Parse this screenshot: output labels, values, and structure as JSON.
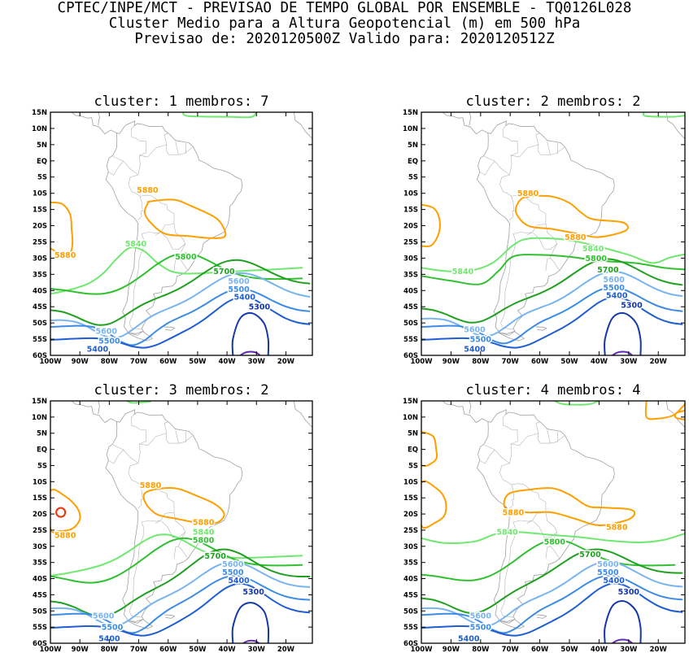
{
  "header": {
    "line1": "CPTEC/INPE/MCT - PREVISAO DE TEMPO GLOBAL POR ENSEMBLE - TQ0126L028",
    "line2": "Cluster Medio para a Altura Geopotencial (m) em 500 hPa",
    "line3": "Previsao de: 2020120500Z   Valido para: 2020120512Z"
  },
  "axes": {
    "lat_labels": [
      "15N",
      "10N",
      "5N",
      "EQ",
      "5S",
      "10S",
      "15S",
      "20S",
      "25S",
      "30S",
      "35S",
      "40S",
      "45S",
      "50S",
      "55S",
      "60S"
    ],
    "lon_labels": [
      "100W",
      "90W",
      "80W",
      "70W",
      "60W",
      "50W",
      "40W",
      "30W",
      "20W"
    ]
  },
  "colors": {
    "c5880": "#ff9f00",
    "c5840": "#70e870",
    "c5800": "#30c030",
    "c5700": "#20a020",
    "c5600": "#78b4f0",
    "c5500": "#3c8ce6",
    "c5400": "#1e5ed2",
    "c5300": "#1437aa",
    "c5200": "#6428b4",
    "high": "#e63c14",
    "coast": "#a0a0a0"
  },
  "panels": [
    {
      "title": "cluster: 1   membros: 7",
      "labels": [
        {
          "t": "5880",
          "lon": -67,
          "lat": -9,
          "c": "c5880"
        },
        {
          "t": "5880",
          "lon": -95,
          "lat": -29,
          "c": "c5880"
        },
        {
          "t": "5840",
          "lon": -71,
          "lat": -25.5,
          "c": "c5840"
        },
        {
          "t": "5800",
          "lon": -54,
          "lat": -29.5,
          "c": "c5800"
        },
        {
          "t": "5700",
          "lon": -41,
          "lat": -34,
          "c": "c5700"
        },
        {
          "t": "5600",
          "lon": -36,
          "lat": -37,
          "c": "c5600"
        },
        {
          "t": "5500",
          "lon": -36,
          "lat": -39.5,
          "c": "c5500"
        },
        {
          "t": "5400",
          "lon": -34,
          "lat": -42,
          "c": "c5400"
        },
        {
          "t": "5300",
          "lon": -29,
          "lat": -45,
          "c": "c5300"
        },
        {
          "t": "5600",
          "lon": -81,
          "lat": -52.5,
          "c": "c5600"
        },
        {
          "t": "5500",
          "lon": -80,
          "lat": -55.5,
          "c": "c5500"
        },
        {
          "t": "5400",
          "lon": -84,
          "lat": -58,
          "c": "c5400"
        }
      ]
    },
    {
      "title": "cluster: 2   membros: 2",
      "labels": [
        {
          "t": "5880",
          "lon": -64,
          "lat": -10,
          "c": "c5880"
        },
        {
          "t": "5880",
          "lon": -48,
          "lat": -23.5,
          "c": "c5880"
        },
        {
          "t": "5840",
          "lon": -86,
          "lat": -34,
          "c": "c5840"
        },
        {
          "t": "5840",
          "lon": -42,
          "lat": -27,
          "c": "c5840"
        },
        {
          "t": "5800",
          "lon": -41,
          "lat": -30,
          "c": "c5800"
        },
        {
          "t": "5700",
          "lon": -37,
          "lat": -33.5,
          "c": "c5700"
        },
        {
          "t": "5600",
          "lon": -35,
          "lat": -36.5,
          "c": "c5600"
        },
        {
          "t": "5500",
          "lon": -35,
          "lat": -39,
          "c": "c5500"
        },
        {
          "t": "5400",
          "lon": -34,
          "lat": -41.5,
          "c": "c5400"
        },
        {
          "t": "5300",
          "lon": -29,
          "lat": -44.5,
          "c": "c5300"
        },
        {
          "t": "5600",
          "lon": -82,
          "lat": -52,
          "c": "c5600"
        },
        {
          "t": "5500",
          "lon": -80,
          "lat": -55,
          "c": "c5500"
        },
        {
          "t": "5400",
          "lon": -82,
          "lat": -58,
          "c": "c5400"
        }
      ]
    },
    {
      "title": "cluster: 3   membros: 2",
      "labels": [
        {
          "t": "5880",
          "lon": -66,
          "lat": -11,
          "c": "c5880"
        },
        {
          "t": "5880",
          "lon": -48,
          "lat": -22.5,
          "c": "c5880"
        },
        {
          "t": "5880",
          "lon": -95,
          "lat": -26.5,
          "c": "c5880"
        },
        {
          "t": "5840",
          "lon": -48,
          "lat": -25.5,
          "c": "c5840"
        },
        {
          "t": "5800",
          "lon": -48,
          "lat": -28,
          "c": "c5800"
        },
        {
          "t": "5700",
          "lon": -44,
          "lat": -33,
          "c": "c5700"
        },
        {
          "t": "5600",
          "lon": -38,
          "lat": -35.5,
          "c": "c5600"
        },
        {
          "t": "5500",
          "lon": -38,
          "lat": -38,
          "c": "c5500"
        },
        {
          "t": "5400",
          "lon": -36,
          "lat": -40.5,
          "c": "c5400"
        },
        {
          "t": "5300",
          "lon": -31,
          "lat": -44,
          "c": "c5300"
        },
        {
          "t": "5600",
          "lon": -82,
          "lat": -51.5,
          "c": "c5600"
        },
        {
          "t": "5500",
          "lon": -79,
          "lat": -55,
          "c": "c5500"
        },
        {
          "t": "5400",
          "lon": -80,
          "lat": -58.5,
          "c": "c5400"
        }
      ]
    },
    {
      "title": "cluster: 4   membros: 4",
      "labels": [
        {
          "t": "5880",
          "lon": -69,
          "lat": -19.5,
          "c": "c5880"
        },
        {
          "t": "5880",
          "lon": -34,
          "lat": -24,
          "c": "c5880"
        },
        {
          "t": "5840",
          "lon": -71,
          "lat": -25.5,
          "c": "c5840"
        },
        {
          "t": "5800",
          "lon": -55,
          "lat": -28.5,
          "c": "c5800"
        },
        {
          "t": "5700",
          "lon": -43,
          "lat": -32.5,
          "c": "c5700"
        },
        {
          "t": "5600",
          "lon": -37,
          "lat": -35.5,
          "c": "c5600"
        },
        {
          "t": "5500",
          "lon": -37,
          "lat": -38,
          "c": "c5500"
        },
        {
          "t": "5400",
          "lon": -35,
          "lat": -40.5,
          "c": "c5400"
        },
        {
          "t": "5300",
          "lon": -30,
          "lat": -44,
          "c": "c5300"
        },
        {
          "t": "5600",
          "lon": -80,
          "lat": -51.5,
          "c": "c5600"
        },
        {
          "t": "5500",
          "lon": -80,
          "lat": -55,
          "c": "c5500"
        },
        {
          "t": "5400",
          "lon": -84,
          "lat": -58.5,
          "c": "c5400"
        }
      ]
    }
  ]
}
